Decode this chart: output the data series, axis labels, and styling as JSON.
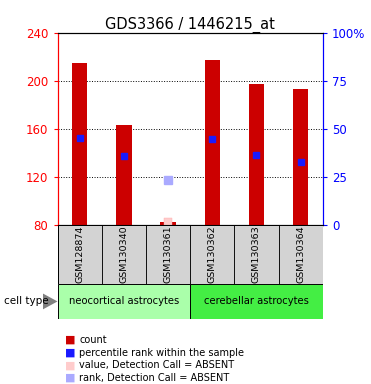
{
  "title": "GDS3366 / 1446215_at",
  "samples": [
    "GSM128874",
    "GSM130340",
    "GSM130361",
    "GSM130362",
    "GSM130363",
    "GSM130364"
  ],
  "count_values": [
    215,
    163,
    82,
    217,
    197,
    193
  ],
  "percentile_values": [
    152,
    137,
    null,
    151,
    138,
    132
  ],
  "absent_value_values": [
    null,
    null,
    82,
    null,
    null,
    null
  ],
  "absent_rank_values": [
    null,
    null,
    117,
    null,
    null,
    null
  ],
  "ymin": 80,
  "ymax": 240,
  "yticks_left": [
    80,
    120,
    160,
    200,
    240
  ],
  "yticks_right_labels": [
    "0",
    "25",
    "50",
    "75",
    "100%"
  ],
  "bar_color": "#cc0000",
  "percentile_color": "#1a1aff",
  "absent_value_color": "#ffcccc",
  "absent_rank_color": "#aaaaff",
  "neocortical_color": "#aaffaa",
  "cerebellar_color": "#44ee44",
  "sample_bg_color": "#d3d3d3",
  "legend_items": [
    {
      "label": "count",
      "color": "#cc0000"
    },
    {
      "label": "percentile rank within the sample",
      "color": "#1a1aff"
    },
    {
      "label": "value, Detection Call = ABSENT",
      "color": "#ffcccc"
    },
    {
      "label": "rank, Detection Call = ABSENT",
      "color": "#aaaaff"
    }
  ]
}
